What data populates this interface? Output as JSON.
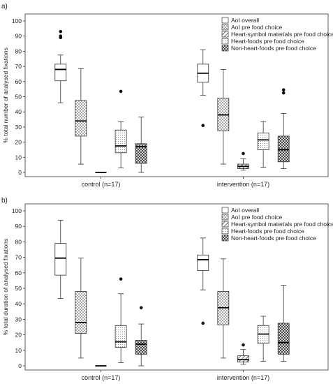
{
  "chart_data": [
    {
      "type": "box",
      "panel_label": "a)",
      "ylabel": "% total number of analysed fixations",
      "ylim": [
        0,
        100
      ],
      "yticks": [
        0,
        10,
        20,
        30,
        40,
        50,
        60,
        70,
        80,
        90,
        100
      ],
      "grid": false,
      "legend_placement": "top-right",
      "categories": [
        "control (n=17)",
        "intervention (n=17)"
      ],
      "series": [
        {
          "name": "AoI overall",
          "pattern": "plain",
          "boxes": [
            {
              "min": 46,
              "q1": 60.5,
              "median": 68,
              "q3": 71.5,
              "max": 77.5,
              "outliers": [
                89,
                90,
                93
              ]
            },
            {
              "min": 51,
              "q1": 59.5,
              "median": 65.5,
              "q3": 71.5,
              "max": 81,
              "outliers": [
                31
              ]
            }
          ]
        },
        {
          "name": "AoI pre food choice",
          "pattern": "dots",
          "boxes": [
            {
              "min": 5.5,
              "q1": 24,
              "median": 34,
              "q3": 47.5,
              "max": 68.5,
              "outliers": []
            },
            {
              "min": 5.5,
              "q1": 27.5,
              "median": 38,
              "q3": 49,
              "max": 68,
              "outliers": []
            }
          ]
        },
        {
          "name": "Heart-symbol materials pre food choice",
          "pattern": "hatch",
          "boxes": [
            {
              "min": 0,
              "q1": 0,
              "median": 0,
              "q3": 0,
              "max": 0,
              "outliers": []
            },
            {
              "min": 1.5,
              "q1": 2.5,
              "median": 4,
              "q3": 5.5,
              "max": 9,
              "outliers": [
                12.5
              ]
            }
          ]
        },
        {
          "name": "Heart-foods pre food choice",
          "pattern": "fine-dots",
          "boxes": [
            {
              "min": 3,
              "q1": 13,
              "median": 17.5,
              "q3": 28,
              "max": 33.5,
              "outliers": [
                53.5
              ]
            },
            {
              "min": 3.5,
              "q1": 15,
              "median": 21.5,
              "q3": 26,
              "max": 33.5,
              "outliers": []
            }
          ]
        },
        {
          "name": "Non-heart-foods pre food choice",
          "pattern": "cross",
          "boxes": [
            {
              "min": 0,
              "q1": 6,
              "median": 17,
              "q3": 19,
              "max": 36.5,
              "outliers": []
            },
            {
              "min": 2.5,
              "q1": 7,
              "median": 15,
              "q3": 24,
              "max": 39,
              "outliers": [
                52.5,
                54.5
              ]
            }
          ]
        }
      ]
    },
    {
      "type": "box",
      "panel_label": "b)",
      "ylabel": "% total duration of analysed fixations",
      "ylim": [
        0,
        100
      ],
      "yticks": [
        0,
        10,
        20,
        30,
        40,
        50,
        60,
        70,
        80,
        90,
        100
      ],
      "grid": false,
      "legend_placement": "top-right",
      "categories": [
        "control (n=17)",
        "intervention (n=17)"
      ],
      "series": [
        {
          "name": "AoI overall",
          "pattern": "plain",
          "boxes": [
            {
              "min": 43.5,
              "q1": 58.5,
              "median": 69.5,
              "q3": 79,
              "max": 94,
              "outliers": []
            },
            {
              "min": 49,
              "q1": 61.5,
              "median": 68.5,
              "q3": 71.5,
              "max": 82.5,
              "outliers": [
                27.5
              ]
            }
          ]
        },
        {
          "name": "AoI pre food choice",
          "pattern": "dots",
          "boxes": [
            {
              "min": 5,
              "q1": 21,
              "median": 28,
              "q3": 48,
              "max": 69.5,
              "outliers": []
            },
            {
              "min": 5,
              "q1": 26.5,
              "median": 37.5,
              "q3": 48,
              "max": 69,
              "outliers": []
            }
          ]
        },
        {
          "name": "Heart-symbol materials pre food choice",
          "pattern": "hatch",
          "boxes": [
            {
              "min": 0,
              "q1": 0,
              "median": 0,
              "q3": 0,
              "max": 0,
              "outliers": []
            },
            {
              "min": 1,
              "q1": 2.5,
              "median": 4,
              "q3": 6.5,
              "max": 10.5,
              "outliers": [
                13.5
              ]
            }
          ]
        },
        {
          "name": "Heart-foods pre food choice",
          "pattern": "fine-dots",
          "boxes": [
            {
              "min": 2,
              "q1": 12,
              "median": 15.5,
              "q3": 26,
              "max": 46.5,
              "outliers": [
                56
              ]
            },
            {
              "min": 3,
              "q1": 14.5,
              "median": 20.5,
              "q3": 26,
              "max": 32,
              "outliers": []
            }
          ]
        },
        {
          "name": "Non-heart-foods pre food choice",
          "pattern": "cross",
          "boxes": [
            {
              "min": 0,
              "q1": 7.5,
              "median": 14,
              "q3": 16.5,
              "max": 27,
              "outliers": [
                37.5
              ]
            },
            {
              "min": 3,
              "q1": 7.5,
              "median": 15,
              "q3": 27.5,
              "max": 52,
              "outliers": []
            }
          ]
        }
      ]
    }
  ]
}
